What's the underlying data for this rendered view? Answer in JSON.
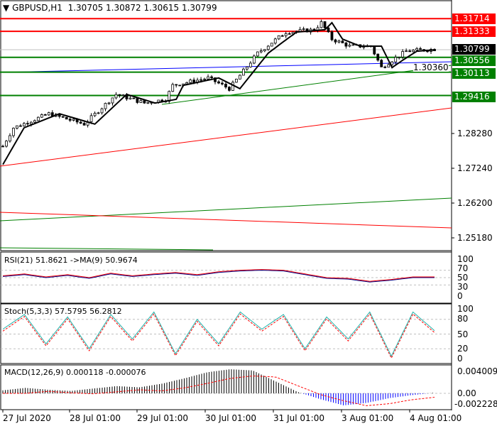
{
  "header": {
    "symbol": "GBPUSD,H1",
    "open": "1.30705",
    "high": "1.30872",
    "low": "1.30615",
    "close": "1.30799"
  },
  "price_axis": [
    "1.28280",
    "1.27240",
    "1.26200",
    "1.25180"
  ],
  "hidden_axis": [
    "1.30360"
  ],
  "levels": [
    {
      "price": "1.31714",
      "color": "#ff0000"
    },
    {
      "price": "1.31333",
      "color": "#ff0000"
    },
    {
      "price": "1.30799",
      "color": "#000000"
    },
    {
      "price": "1.30556",
      "color": "#008000"
    },
    {
      "price": "1.30113",
      "color": "#008000"
    },
    {
      "price": "1.29416",
      "color": "#008000"
    }
  ],
  "rsi": {
    "label": "RSI(21) 51.8621  ->MA(9) 50.9674",
    "ticks": [
      "100",
      "70",
      "50",
      "30",
      "0"
    ]
  },
  "stoch": {
    "label": "Stoch(5,3,3) 57.5795 56.2812",
    "ticks": [
      "100",
      "80",
      "50",
      "20",
      "0"
    ]
  },
  "macd": {
    "label": "MACD(12,26,9) 0.000118 -0.000076",
    "ticks": [
      "0.004009",
      "0.00",
      "-0.002228"
    ]
  },
  "time_axis": [
    "27 Jul 2020",
    "28 Jul 01:00",
    "29 Jul 01:00",
    "30 Jul 01:00",
    "31 Jul 01:00",
    "3 Aug 01:00",
    "4 Aug 01:00"
  ],
  "chart_data": {
    "type": "candlestick",
    "title": "GBPUSD,H1",
    "close_keypoints": [
      [
        0,
        1.279
      ],
      [
        3,
        1.2845
      ],
      [
        13,
        1.2887
      ],
      [
        23,
        1.2856
      ],
      [
        32,
        1.2945
      ],
      [
        40,
        1.2919
      ],
      [
        46,
        1.293
      ],
      [
        48,
        1.2972
      ],
      [
        58,
        1.2994
      ],
      [
        64,
        1.2962
      ],
      [
        68,
        1.3015
      ],
      [
        72,
        1.3068
      ],
      [
        76,
        1.31
      ],
      [
        80,
        1.3131
      ],
      [
        88,
        1.3138
      ],
      [
        90,
        1.3159
      ],
      [
        93,
        1.311
      ],
      [
        98,
        1.3089
      ],
      [
        104,
        1.3089
      ],
      [
        107,
        1.3025
      ],
      [
        110,
        1.3047
      ],
      [
        114,
        1.3074
      ],
      [
        122,
        1.308
      ]
    ],
    "ylim": [
      1.249,
      1.32
    ],
    "rsi": [
      55,
      60,
      52,
      58,
      50,
      62,
      55,
      60,
      64,
      58,
      66,
      70,
      72,
      70,
      60,
      50,
      48,
      40,
      45,
      52,
      52
    ],
    "stoch": [
      60,
      90,
      30,
      85,
      20,
      90,
      40,
      95,
      10,
      80,
      30,
      95,
      60,
      90,
      20,
      85,
      40,
      95,
      5,
      95,
      57
    ],
    "macd": [
      0.0005,
      0.0009,
      0.0006,
      0.0004,
      0.0008,
      0.0012,
      0.001,
      0.0016,
      0.0025,
      0.0035,
      0.004,
      0.0038,
      0.002,
      0.0002,
      -0.001,
      -0.002,
      -0.0016,
      -0.0008,
      -0.0003,
      0.0001
    ]
  }
}
